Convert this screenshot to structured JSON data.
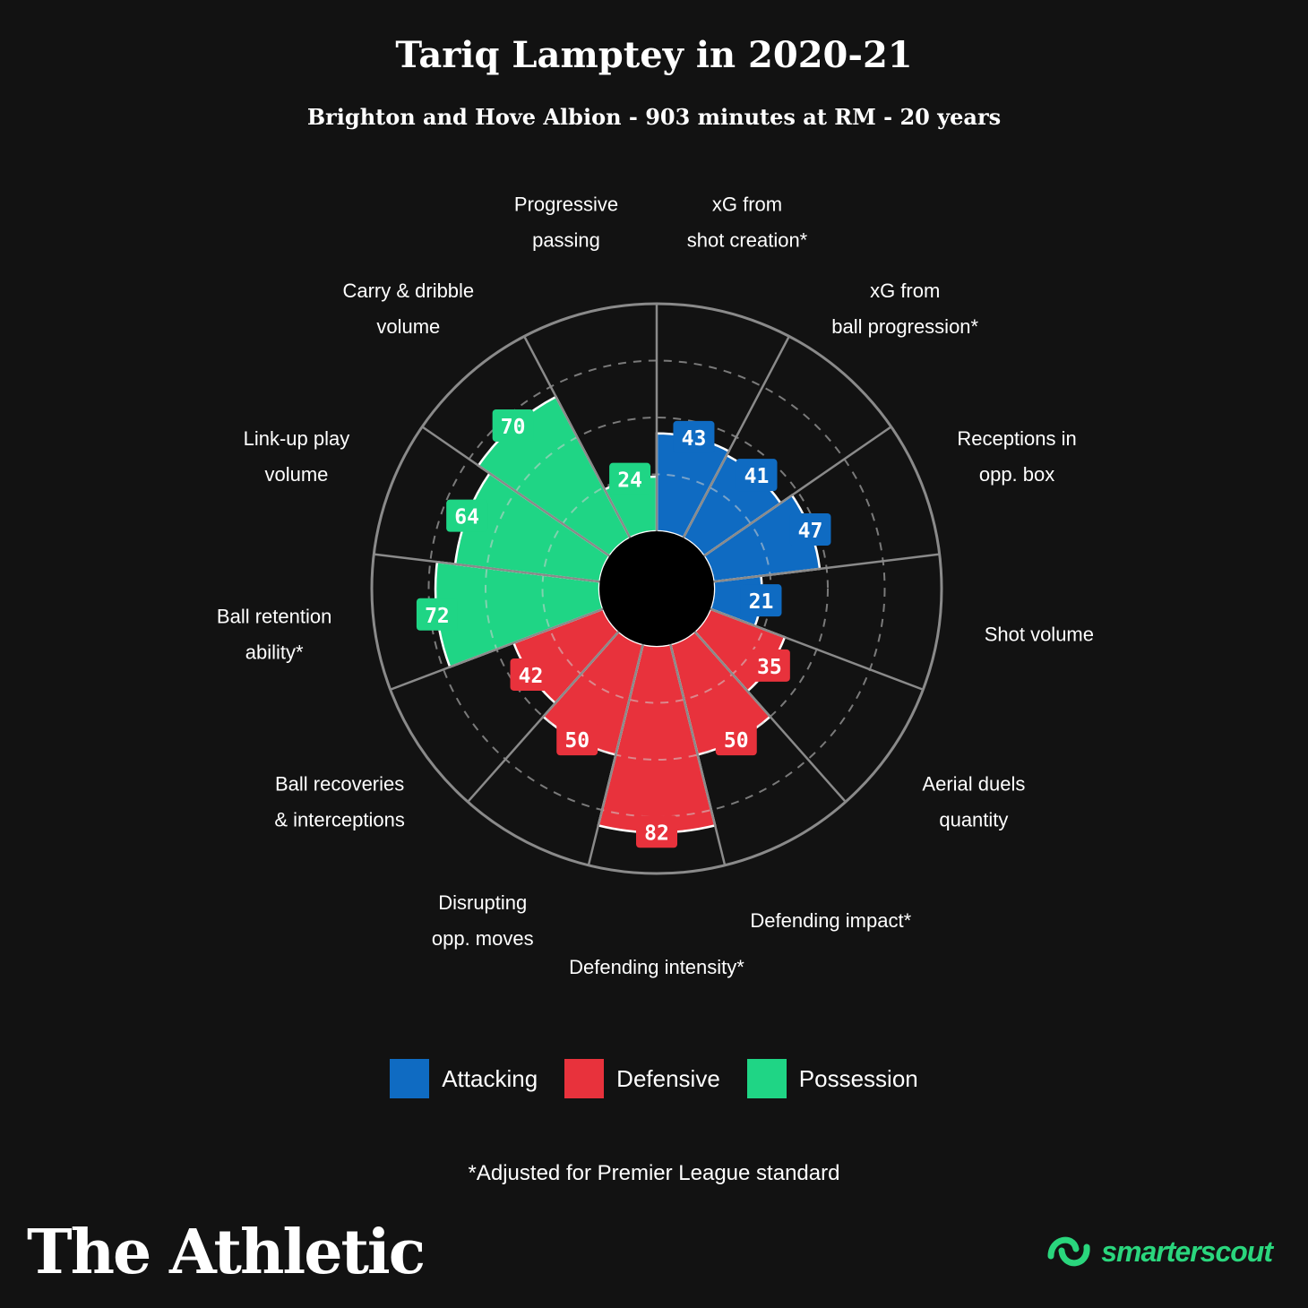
{
  "header": {
    "title": "Tariq Lamptey in 2020-21",
    "subtitle": "Brighton and Hove Albion - 903 minutes at RM - 20 years"
  },
  "colors": {
    "attacking": "#0f6bc2",
    "defensive": "#e8323c",
    "possession": "#1fd585",
    "background": "#121212",
    "grid": "#8a8a8a",
    "brand_accent": "#2ad67d"
  },
  "chart_data": {
    "type": "polar_bar",
    "title": "Tariq Lamptey in 2020-21",
    "range": [
      0,
      100
    ],
    "grid_levels": [
      25,
      50,
      75
    ],
    "categories": [
      {
        "label_lines": [
          "xG from",
          "shot creation*"
        ],
        "value": 43,
        "group": "Attacking"
      },
      {
        "label_lines": [
          "xG from",
          "ball progression*"
        ],
        "value": 41,
        "group": "Attacking"
      },
      {
        "label_lines": [
          "Receptions in",
          "opp. box"
        ],
        "value": 47,
        "group": "Attacking"
      },
      {
        "label_lines": [
          "Shot volume"
        ],
        "value": 21,
        "group": "Attacking"
      },
      {
        "label_lines": [
          "Aerial duels",
          "quantity"
        ],
        "value": 35,
        "group": "Defensive"
      },
      {
        "label_lines": [
          "Defending impact*"
        ],
        "value": 50,
        "group": "Defensive"
      },
      {
        "label_lines": [
          "Defending intensity*"
        ],
        "value": 82,
        "group": "Defensive"
      },
      {
        "label_lines": [
          "Disrupting",
          "opp. moves"
        ],
        "value": 50,
        "group": "Defensive"
      },
      {
        "label_lines": [
          "Ball recoveries",
          "& interceptions"
        ],
        "value": 42,
        "group": "Defensive"
      },
      {
        "label_lines": [
          "Ball retention",
          "ability*"
        ],
        "value": 72,
        "group": "Possession"
      },
      {
        "label_lines": [
          "Link-up play",
          "volume"
        ],
        "value": 64,
        "group": "Possession"
      },
      {
        "label_lines": [
          "Carry & dribble",
          "volume"
        ],
        "value": 70,
        "group": "Possession"
      },
      {
        "label_lines": [
          "Progressive",
          "passing"
        ],
        "value": 24,
        "group": "Possession"
      }
    ],
    "legend": [
      "Attacking",
      "Defensive",
      "Possession"
    ]
  },
  "legend": {
    "attacking": "Attacking",
    "defensive": "Defensive",
    "possession": "Possession"
  },
  "footnote": "*Adjusted for Premier League standard",
  "brand": "The Athletic",
  "partner": "smarterscout"
}
